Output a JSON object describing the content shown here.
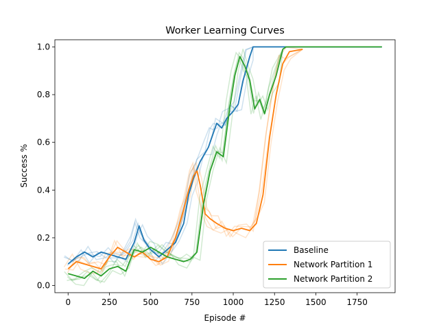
{
  "chart_data": {
    "type": "line",
    "title": "Worker Learning Curves",
    "xlabel": "Episode #",
    "ylabel": "Success %",
    "xlim": [
      -80,
      1980
    ],
    "ylim": [
      -0.03,
      1.03
    ],
    "xticks": [
      0,
      250,
      500,
      750,
      1000,
      1250,
      1500,
      1750
    ],
    "yticks": [
      0.0,
      0.2,
      0.4,
      0.6,
      0.8,
      1.0
    ],
    "xtick_labels": [
      "0",
      "250",
      "500",
      "750",
      "1000",
      "1250",
      "1500",
      "1750"
    ],
    "ytick_labels": [
      "0.0",
      "0.2",
      "0.4",
      "0.6",
      "0.8",
      "1.0"
    ],
    "grid": false,
    "legend_position": "lower right",
    "series": [
      {
        "name": "Baseline",
        "color": "#1f77b4",
        "points": [
          [
            0,
            0.09
          ],
          [
            50,
            0.12
          ],
          [
            100,
            0.14
          ],
          [
            150,
            0.12
          ],
          [
            200,
            0.14
          ],
          [
            250,
            0.13
          ],
          [
            300,
            0.12
          ],
          [
            350,
            0.11
          ],
          [
            400,
            0.18
          ],
          [
            430,
            0.25
          ],
          [
            460,
            0.19
          ],
          [
            500,
            0.15
          ],
          [
            550,
            0.12
          ],
          [
            600,
            0.15
          ],
          [
            650,
            0.18
          ],
          [
            700,
            0.26
          ],
          [
            730,
            0.38
          ],
          [
            760,
            0.45
          ],
          [
            800,
            0.52
          ],
          [
            850,
            0.58
          ],
          [
            880,
            0.64
          ],
          [
            900,
            0.68
          ],
          [
            930,
            0.66
          ],
          [
            960,
            0.7
          ],
          [
            1000,
            0.73
          ],
          [
            1030,
            0.76
          ],
          [
            1060,
            0.86
          ],
          [
            1100,
            0.96
          ],
          [
            1120,
            1.0
          ],
          [
            1900,
            1.0
          ]
        ]
      },
      {
        "name": "Network Partition 1",
        "color": "#ff7f0e",
        "points": [
          [
            0,
            0.07
          ],
          [
            50,
            0.1
          ],
          [
            100,
            0.09
          ],
          [
            150,
            0.08
          ],
          [
            200,
            0.07
          ],
          [
            250,
            0.12
          ],
          [
            300,
            0.16
          ],
          [
            350,
            0.14
          ],
          [
            400,
            0.12
          ],
          [
            450,
            0.14
          ],
          [
            500,
            0.11
          ],
          [
            550,
            0.1
          ],
          [
            600,
            0.12
          ],
          [
            650,
            0.2
          ],
          [
            700,
            0.32
          ],
          [
            730,
            0.4
          ],
          [
            760,
            0.46
          ],
          [
            780,
            0.48
          ],
          [
            800,
            0.42
          ],
          [
            830,
            0.3
          ],
          [
            860,
            0.28
          ],
          [
            900,
            0.26
          ],
          [
            950,
            0.24
          ],
          [
            1000,
            0.23
          ],
          [
            1050,
            0.24
          ],
          [
            1100,
            0.23
          ],
          [
            1140,
            0.26
          ],
          [
            1180,
            0.38
          ],
          [
            1220,
            0.62
          ],
          [
            1260,
            0.8
          ],
          [
            1300,
            0.93
          ],
          [
            1340,
            0.98
          ],
          [
            1420,
            0.99
          ]
        ]
      },
      {
        "name": "Network Partition 2",
        "color": "#2ca02c",
        "points": [
          [
            0,
            0.05
          ],
          [
            50,
            0.04
          ],
          [
            100,
            0.03
          ],
          [
            150,
            0.06
          ],
          [
            200,
            0.04
          ],
          [
            250,
            0.07
          ],
          [
            300,
            0.08
          ],
          [
            350,
            0.06
          ],
          [
            400,
            0.15
          ],
          [
            450,
            0.14
          ],
          [
            500,
            0.16
          ],
          [
            550,
            0.14
          ],
          [
            600,
            0.12
          ],
          [
            650,
            0.11
          ],
          [
            700,
            0.1
          ],
          [
            740,
            0.11
          ],
          [
            780,
            0.14
          ],
          [
            820,
            0.34
          ],
          [
            860,
            0.48
          ],
          [
            900,
            0.56
          ],
          [
            940,
            0.54
          ],
          [
            980,
            0.75
          ],
          [
            1010,
            0.88
          ],
          [
            1040,
            0.96
          ],
          [
            1070,
            0.92
          ],
          [
            1100,
            0.86
          ],
          [
            1130,
            0.74
          ],
          [
            1160,
            0.78
          ],
          [
            1190,
            0.72
          ],
          [
            1220,
            0.8
          ],
          [
            1260,
            0.88
          ],
          [
            1300,
            0.99
          ],
          [
            1320,
            1.0
          ],
          [
            1900,
            1.0
          ]
        ]
      }
    ]
  }
}
